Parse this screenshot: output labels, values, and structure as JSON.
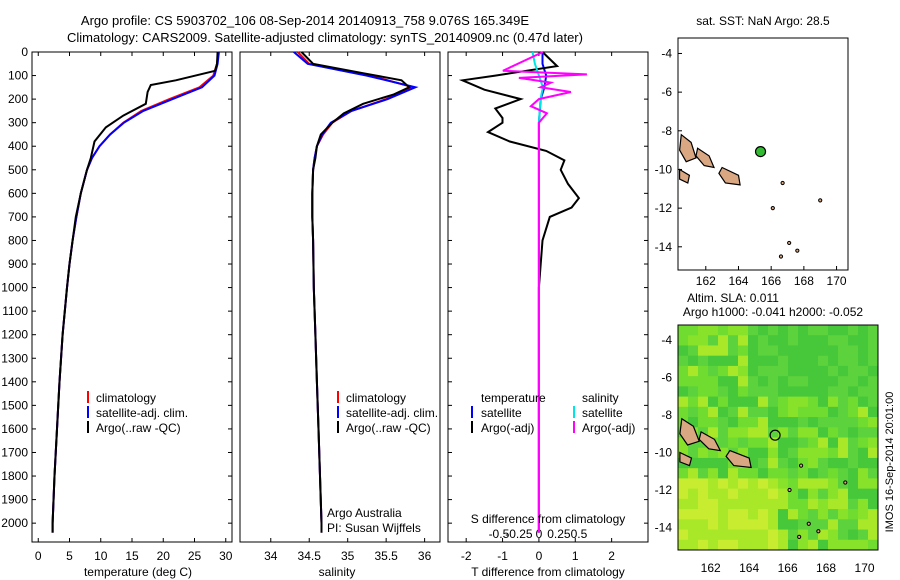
{
  "header": {
    "line1": "Argo profile: CS 5903702_106 08-Sep-2014 20140913_758 9.076S 165.349E",
    "line2": "Climatology: CARS2009. Satellite-adjusted climatology: synTS_20140909.nc (0.47d later)"
  },
  "colors": {
    "climatology": "#ff0000",
    "satellite": "#0000ff",
    "argo": "#000000",
    "sal_satellite": "#00e5e5",
    "sal_argo": "#ff00ff",
    "land": "#d9a882",
    "float_marker": "#33bb33"
  },
  "legend": {
    "climatology": "climatology",
    "satellite_adj": "satellite-adj. clim.",
    "argo": "Argo(..raw -QC)",
    "diff_temperature": "temperature",
    "diff_salinity": "salinity",
    "diff_satellite": "satellite",
    "diff_argo": "Argo(-adj)"
  },
  "credits": {
    "org": "Argo Australia",
    "pi": "PI: Susan Wijffels"
  },
  "maps": {
    "sst_title": "sat. SST: NaN Argo: 28.5",
    "sla_title1": "Altim. SLA: 0.011",
    "sla_title2": "Argo h1000: -0.041 h2000: -0.052",
    "side_stamp": "IMOS 16-Sep-2014 20:01:00",
    "float_lon": 165.349,
    "float_lat": -9.076,
    "xticks": [
      "162",
      "164",
      "166",
      "168",
      "170"
    ],
    "yticks": [
      "-4",
      "-6",
      "-8",
      "-10",
      "-12",
      "-14"
    ]
  },
  "chart_data": [
    {
      "type": "line",
      "panel": "temperature",
      "xlabel": "temperature (deg C)",
      "ylabel": "",
      "xlim": [
        -1,
        31
      ],
      "ylim": [
        2080,
        0
      ],
      "xticks": [
        "0",
        "5",
        "10",
        "15",
        "20",
        "25",
        "30"
      ],
      "yticks": [
        "0",
        "100",
        "200",
        "300",
        "400",
        "500",
        "600",
        "700",
        "800",
        "900",
        "1000",
        "1100",
        "1200",
        "1300",
        "1400",
        "1500",
        "1600",
        "1700",
        "1800",
        "1900",
        "2000"
      ],
      "series": [
        {
          "name": "climatology",
          "depth": [
            0,
            50,
            100,
            150,
            200,
            250,
            300,
            350,
            400,
            450,
            500,
            600,
            700,
            800,
            900,
            1000,
            1200,
            1400,
            1600,
            1800,
            2000,
            2040
          ],
          "values": [
            28.8,
            28.6,
            28,
            25.8,
            21,
            16.5,
            13.6,
            11.5,
            9.8,
            8.6,
            7.8,
            6.8,
            6.1,
            5.5,
            5.0,
            4.6,
            3.9,
            3.4,
            3.0,
            2.6,
            2.3,
            2.3
          ]
        },
        {
          "name": "satellite-adj. clim.",
          "depth": [
            0,
            50,
            100,
            150,
            200,
            250,
            300,
            350,
            400,
            450,
            500,
            600,
            700,
            800,
            900,
            1000,
            1200,
            1400,
            1600,
            1800,
            2000,
            2040
          ],
          "values": [
            28.9,
            28.7,
            28.2,
            26.2,
            21.5,
            16.8,
            13.7,
            11.5,
            9.8,
            8.6,
            7.8,
            6.8,
            6.1,
            5.5,
            5.0,
            4.6,
            3.9,
            3.4,
            3.0,
            2.6,
            2.3,
            2.3
          ]
        },
        {
          "name": "Argo(..raw -QC)",
          "depth": [
            0,
            50,
            80,
            120,
            140,
            170,
            220,
            270,
            320,
            380,
            450,
            500,
            600,
            700,
            800,
            900,
            1000,
            1200,
            1400,
            1600,
            1800,
            2000,
            2040
          ],
          "values": [
            28.7,
            28.6,
            28.3,
            22,
            18,
            17.5,
            17.2,
            13.6,
            10.8,
            9.0,
            8.4,
            7.8,
            6.8,
            6.0,
            5.5,
            5.0,
            4.6,
            3.9,
            3.4,
            3.0,
            2.6,
            2.3,
            2.3
          ]
        }
      ]
    },
    {
      "type": "line",
      "panel": "salinity",
      "xlabel": "salinity",
      "xlim": [
        33.6,
        36.2
      ],
      "ylim": [
        2080,
        0
      ],
      "xticks": [
        "34",
        "34.5",
        "35",
        "35.5",
        "36"
      ],
      "series": [
        {
          "name": "climatology",
          "depth": [
            0,
            50,
            100,
            150,
            200,
            250,
            300,
            350,
            400,
            450,
            500,
            600,
            700,
            800,
            1000,
            1200,
            1400,
            1600,
            1800,
            2000,
            2040
          ],
          "values": [
            34.35,
            34.5,
            35.3,
            35.85,
            35.5,
            35.05,
            34.8,
            34.68,
            34.6,
            34.57,
            34.55,
            34.54,
            34.54,
            34.55,
            34.56,
            34.58,
            34.6,
            34.62,
            34.64,
            34.66,
            34.66
          ]
        },
        {
          "name": "satellite-adj. clim.",
          "depth": [
            0,
            50,
            100,
            150,
            200,
            250,
            300,
            350,
            400,
            450,
            500,
            600,
            700,
            800,
            1000,
            1200,
            1400,
            1600,
            1800,
            2000,
            2040
          ],
          "values": [
            34.3,
            34.48,
            35.25,
            35.88,
            35.52,
            35.05,
            34.78,
            34.67,
            34.6,
            34.57,
            34.55,
            34.54,
            34.54,
            34.55,
            34.56,
            34.58,
            34.6,
            34.62,
            34.64,
            34.66,
            34.66
          ]
        },
        {
          "name": "Argo(..raw -QC)",
          "depth": [
            0,
            50,
            90,
            120,
            150,
            180,
            220,
            260,
            300,
            350,
            400,
            450,
            500,
            600,
            700,
            800,
            1000,
            1200,
            1400,
            1600,
            1800,
            2000,
            2040
          ],
          "values": [
            34.4,
            34.55,
            35.2,
            35.7,
            35.8,
            35.6,
            35.2,
            34.95,
            34.8,
            34.65,
            34.6,
            34.58,
            34.55,
            34.54,
            34.54,
            34.55,
            34.56,
            34.58,
            34.6,
            34.62,
            34.64,
            34.66,
            34.66
          ]
        }
      ]
    },
    {
      "type": "line",
      "panel": "difference",
      "xlabel": "T difference from climatology",
      "x2label": "S difference from climatology",
      "xlim": [
        -2.5,
        3
      ],
      "ylim": [
        2080,
        0
      ],
      "xticks": [
        "-2",
        "-1",
        "0",
        "1",
        "2"
      ],
      "x2ticks": [
        "-0.5",
        "-0.25",
        "0",
        "0.25",
        "0.5"
      ],
      "series": [
        {
          "name": "temperature satellite",
          "depth": [
            0,
            50,
            100,
            150,
            200,
            300,
            500,
            1000,
            2040
          ],
          "values": [
            0.1,
            0.1,
            0.2,
            0.15,
            0.05,
            0,
            0,
            0,
            0
          ]
        },
        {
          "name": "temperature Argo(-adj)",
          "depth": [
            0,
            60,
            100,
            120,
            160,
            200,
            240,
            280,
            300,
            340,
            380,
            420,
            460,
            500,
            560,
            620,
            660,
            700,
            800,
            1000,
            1400,
            2040
          ],
          "values": [
            0.1,
            0.5,
            -1.2,
            -2.1,
            -1.5,
            -0.5,
            -1.2,
            -1.0,
            -1.0,
            -1.4,
            -0.8,
            0.2,
            0.7,
            0.6,
            0.8,
            1.1,
            0.9,
            0.3,
            0.1,
            0,
            0,
            0
          ]
        },
        {
          "name": "salinity satellite",
          "depth": [
            0,
            50,
            100,
            150,
            200,
            300,
            500,
            1000,
            2040
          ],
          "values": [
            -0.08,
            -0.05,
            0,
            0.05,
            0.02,
            0,
            0,
            0,
            0
          ]
        },
        {
          "name": "salinity Argo(-adj)",
          "depth": [
            0,
            80,
            95,
            110,
            130,
            150,
            170,
            200,
            230,
            260,
            300,
            400,
            2040
          ],
          "values": [
            0.05,
            -0.45,
            0.6,
            -0.25,
            0.15,
            0.02,
            0.4,
            0.0,
            -0.1,
            0.1,
            0,
            0,
            0
          ]
        }
      ]
    }
  ]
}
